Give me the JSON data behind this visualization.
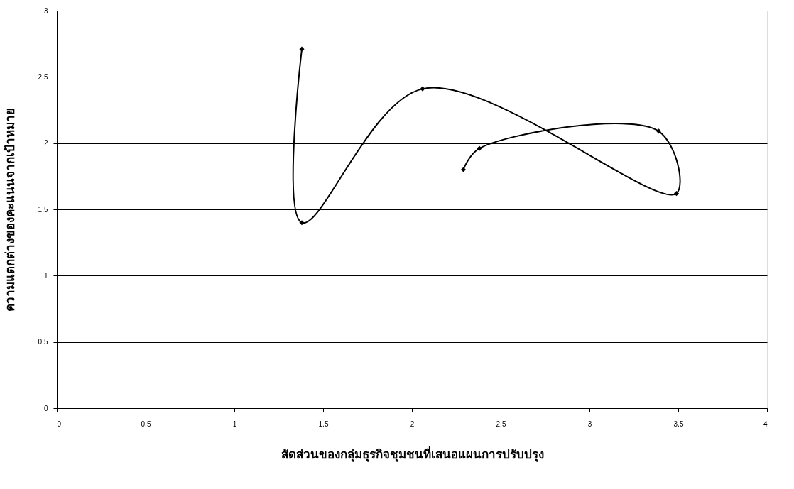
{
  "chart_data": {
    "type": "line",
    "xlabel": "สัดส่วนของกลุ่มธุรกิจชุมชนที่เสนอแผนการปรับปรุง",
    "ylabel": "ความแตกต่างของคะแนนจากเป้าหมาย",
    "series": [
      {
        "color": "#000000",
        "x": [
          1.38,
          1.38,
          2.06,
          3.49,
          3.39,
          2.38,
          2.29
        ],
        "values": [
          2.71,
          1.4,
          2.41,
          1.62,
          2.09,
          1.96,
          1.8
        ]
      }
    ],
    "xlim": [
      0,
      4
    ],
    "xticks": [
      0,
      0.5,
      1,
      1.5,
      2,
      2.5,
      3,
      3.5,
      4
    ],
    "ylim": [
      0,
      3
    ],
    "yticks": [
      0,
      0.5,
      1,
      1.5,
      2,
      2.5,
      3
    ],
    "grid": "y",
    "marker": "diamond",
    "line_style": "solid",
    "legend": false
  }
}
